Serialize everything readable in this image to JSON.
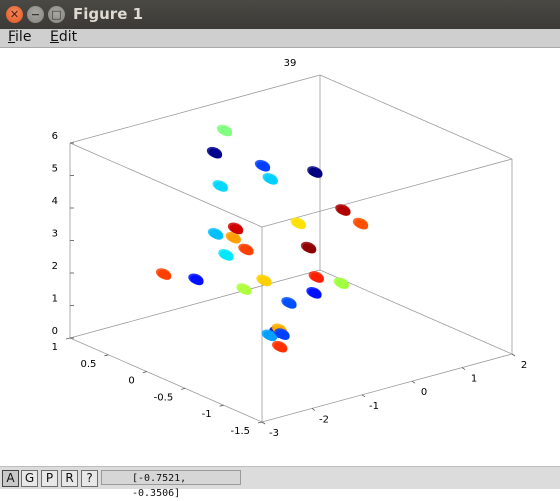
{
  "window": {
    "title": "Figure 1"
  },
  "menu": {
    "file": "File",
    "edit": "Edit",
    "file_mnemonic": "F",
    "file_rest": "ile",
    "edit_mnemonic": "E",
    "edit_rest": "dit"
  },
  "status": {
    "buttons": [
      "A",
      "G",
      "P",
      "R",
      "?"
    ],
    "readout": "[-0.7521, -0.3506]"
  },
  "chart_data": {
    "type": "scatter",
    "title": "39",
    "projection": "3d",
    "xlim": [
      -3,
      2
    ],
    "ylim": [
      -1.5,
      1
    ],
    "zlim": [
      0,
      6
    ],
    "x_ticks": [
      "-3",
      "-2",
      "-1",
      "0",
      "1",
      "2"
    ],
    "y_ticks": [
      "-1.5",
      "-1",
      "-0.5",
      "0",
      "0.5",
      "1"
    ],
    "z_ticks": [
      "0",
      "1",
      "2",
      "3",
      "4",
      "5",
      "6"
    ],
    "colormap": "jet",
    "clusters": [
      {
        "x": -2.8,
        "y": -0.1,
        "z": 3.0,
        "color": "#ff4000"
      },
      {
        "x": -2.0,
        "y": 0.0,
        "z": 2.4,
        "color": "#0010ff"
      },
      {
        "x": -0.9,
        "y": 0.4,
        "z": 4.4,
        "color": "#00d8ff"
      },
      {
        "x": -1.3,
        "y": 0.2,
        "z": 3.3,
        "color": "#00c0ff"
      },
      {
        "x": -1.1,
        "y": 0.1,
        "z": 3.2,
        "color": "#ffa000"
      },
      {
        "x": -1.4,
        "y": 0.0,
        "z": 2.9,
        "color": "#00e8ff"
      },
      {
        "x": -1.0,
        "y": 0.0,
        "z": 2.9,
        "color": "#ff4000"
      },
      {
        "x": -0.9,
        "y": 0.2,
        "z": 3.3,
        "color": "#d00000"
      },
      {
        "x": -1.5,
        "y": -0.3,
        "z": 2.2,
        "color": "#b0ff40"
      },
      {
        "x": -1.1,
        "y": -0.3,
        "z": 2.3,
        "color": "#ffd000"
      },
      {
        "x": -0.2,
        "y": 0.8,
        "z": 5.4,
        "color": "#80ff80"
      },
      {
        "x": -0.4,
        "y": 0.8,
        "z": 4.8,
        "color": "#000090"
      },
      {
        "x": 0.1,
        "y": 0.5,
        "z": 4.5,
        "color": "#0040ff"
      },
      {
        "x": 0.1,
        "y": 0.4,
        "z": 4.2,
        "color": "#00d0ff"
      },
      {
        "x": 0.2,
        "y": 0.1,
        "z": 3.1,
        "color": "#ffe000"
      },
      {
        "x": 0.1,
        "y": -0.1,
        "z": 2.6,
        "color": "#900000"
      },
      {
        "x": 1.3,
        "y": 0.6,
        "z": 3.7,
        "color": "#000080"
      },
      {
        "x": 1.4,
        "y": 0.3,
        "z": 2.8,
        "color": "#b00000"
      },
      {
        "x": 1.6,
        "y": 0.2,
        "z": 2.4,
        "color": "#ff5000"
      },
      {
        "x": -1.3,
        "y": -0.6,
        "z": 1.1,
        "color": "#0000c0"
      },
      {
        "x": -1.4,
        "y": -0.7,
        "z": 0.8,
        "color": "#ff3000"
      },
      {
        "x": -1.3,
        "y": -0.5,
        "z": 0.9,
        "color": "#00a0ff"
      },
      {
        "x": -1.1,
        "y": -0.5,
        "z": 1.0,
        "color": "#ffb000"
      },
      {
        "x": -1.2,
        "y": -0.6,
        "z": 1.0,
        "color": "#0040ff"
      },
      {
        "x": -0.6,
        "y": -0.3,
        "z": 1.4,
        "color": "#0050ff"
      },
      {
        "x": -0.1,
        "y": -0.3,
        "z": 1.5,
        "color": "#0010ff"
      },
      {
        "x": 0.1,
        "y": -0.2,
        "z": 1.8,
        "color": "#ff2000"
      },
      {
        "x": 0.6,
        "y": -0.2,
        "z": 1.4,
        "color": "#a0ff40"
      }
    ]
  }
}
